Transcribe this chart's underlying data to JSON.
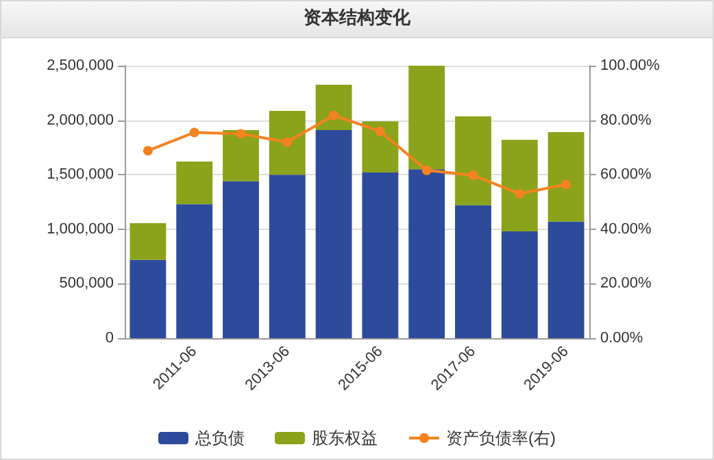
{
  "chart_data": {
    "type": "bar",
    "title": "资本结构变化",
    "stacked": true,
    "categories": [
      null,
      "2011-06",
      null,
      "2013-06",
      null,
      "2015-06",
      null,
      "2017-06",
      null,
      "2019-06"
    ],
    "series": [
      {
        "name": "总负债",
        "color": "#2e4a9a",
        "values": [
          720000,
          1230000,
          1440000,
          1500000,
          1910000,
          1520000,
          1550000,
          1220000,
          980000,
          1070000
        ]
      },
      {
        "name": "股东权益",
        "color": "#8aa31a",
        "values": [
          335000,
          390000,
          470000,
          585000,
          415000,
          470000,
          950000,
          815000,
          840000,
          820000
        ]
      },
      {
        "name": "资产负债率(右)",
        "type": "line",
        "axis": "y2",
        "color": "#f58220",
        "values": [
          68.8,
          75.5,
          75.0,
          72.0,
          81.8,
          75.9,
          61.6,
          59.8,
          53.0,
          56.4
        ]
      }
    ],
    "ylim": [
      0,
      2500000
    ],
    "yticks": [
      {
        "value": 0,
        "label": "0"
      },
      {
        "value": 500000,
        "label": "500,000"
      },
      {
        "value": 1000000,
        "label": "1,000,000"
      },
      {
        "value": 1500000,
        "label": "1,500,000"
      },
      {
        "value": 2000000,
        "label": "2,000,000"
      },
      {
        "value": 2500000,
        "label": "2,500,000"
      }
    ],
    "y2lim": [
      0,
      100
    ],
    "y2ticks": [
      {
        "value": 0,
        "label": "0.00%"
      },
      {
        "value": 20,
        "label": "20.00%"
      },
      {
        "value": 40,
        "label": "40.00%"
      },
      {
        "value": 60,
        "label": "60.00%"
      },
      {
        "value": 80,
        "label": "80.00%"
      },
      {
        "value": 100,
        "label": "100.00%"
      }
    ],
    "grid": "y",
    "legend": "bottom",
    "marker": "circle"
  }
}
